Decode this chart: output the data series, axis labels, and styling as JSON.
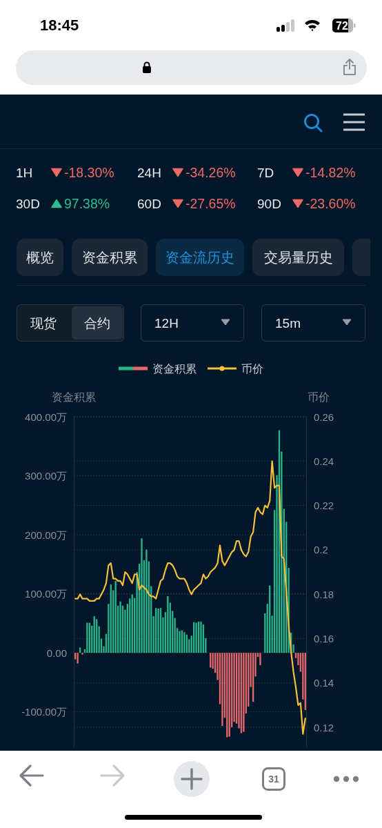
{
  "chart_data": [
    {
      "type": "other",
      "annotations": [
        "18:45",
        "72",
        "1H",
        "-18.30%",
        "24H",
        "-34.26%",
        "7D",
        "-14.82%",
        "30D",
        "97.38%",
        "60D",
        "-27.65%",
        "90D",
        "-23.60%",
        "概览",
        "资金积累",
        "资金流历史",
        "交易量历史",
        "现货",
        "合约",
        "12H",
        "15m",
        "31"
      ]
    },
    {
      "type": "bar",
      "ylabel": "资金积累",
      "y2label": "币价",
      "legend": "top",
      "grid": true,
      "categories": [
        null,
        null,
        null,
        null,
        null,
        null,
        null,
        null,
        null,
        null,
        null,
        null,
        null,
        null,
        null,
        null,
        null,
        null,
        null,
        null,
        null,
        null,
        null,
        null,
        null,
        null,
        null,
        null,
        null,
        null,
        null,
        null,
        null,
        null,
        null,
        null,
        null,
        null,
        null,
        null,
        null,
        null,
        null,
        null,
        null,
        null,
        null,
        null,
        null,
        null,
        null,
        null,
        null,
        null,
        null,
        null,
        null,
        null,
        null,
        null,
        null,
        null,
        null,
        null,
        null,
        null,
        null,
        null,
        null,
        null,
        null,
        null,
        null,
        null,
        null,
        null,
        null,
        null,
        null,
        null,
        null,
        null,
        null,
        null,
        null,
        null,
        null,
        null,
        null,
        null,
        null,
        null,
        null,
        null,
        null,
        null,
        null,
        null
      ],
      "series": [
        {
          "name": "资金积累",
          "type": "bar",
          "values": [
            -11,
            -18,
            9,
            -3,
            6,
            51,
            51,
            46,
            62,
            57,
            45,
            24,
            11,
            32,
            83,
            116,
            106,
            122,
            80,
            87,
            80,
            73,
            83,
            92,
            99,
            93,
            137,
            151,
            194,
            157,
            175,
            155,
            113,
            62,
            76,
            75,
            76,
            60,
            69,
            96,
            85,
            71,
            59,
            42,
            37,
            38,
            35,
            31,
            23,
            29,
            52,
            51,
            53,
            53,
            48,
            25,
            null,
            -25,
            -27,
            -34,
            -46,
            -87,
            -124,
            -110,
            -143,
            -142,
            -126,
            -117,
            -120,
            -128,
            -136,
            -134,
            -103,
            -91,
            -58,
            -83,
            -40,
            -7,
            -21,
            null,
            67,
            83,
            114,
            63,
            242,
            301,
            377,
            341,
            244,
            222,
            144,
            34,
            14,
            -9,
            -21,
            -32,
            -79,
            -97
          ],
          "colors": [
            "#e5676b",
            "#e5676b",
            "#27b589",
            "#e5676b",
            "#27b589",
            "#27b589",
            "#27b589",
            "#27b589",
            "#27b589",
            "#27b589",
            "#27b589",
            "#27b589",
            "#27b589",
            "#27b589",
            "#27b589",
            "#27b589",
            "#27b589",
            "#27b589",
            "#27b589",
            "#27b589",
            "#27b589",
            "#27b589",
            "#27b589",
            "#27b589",
            "#27b589",
            "#27b589",
            "#27b589",
            "#27b589",
            "#27b589",
            "#27b589",
            "#27b589",
            "#27b589",
            "#27b589",
            "#27b589",
            "#27b589",
            "#27b589",
            "#27b589",
            "#27b589",
            "#27b589",
            "#27b589",
            "#27b589",
            "#27b589",
            "#27b589",
            "#27b589",
            "#27b589",
            "#27b589",
            "#27b589",
            "#27b589",
            "#27b589",
            "#27b589",
            "#27b589",
            "#27b589",
            "#27b589",
            "#27b589",
            "#27b589",
            "#27b589",
            null,
            "#e5676b",
            "#e5676b",
            "#e5676b",
            "#e5676b",
            "#e5676b",
            "#e5676b",
            "#e5676b",
            "#e5676b",
            "#e5676b",
            "#e5676b",
            "#e5676b",
            "#e5676b",
            "#e5676b",
            "#e5676b",
            "#e5676b",
            "#e5676b",
            "#e5676b",
            "#e5676b",
            "#e5676b",
            "#e5676b",
            "#e5676b",
            "#e5676b",
            null,
            "#27b589",
            "#27b589",
            "#27b589",
            "#27b589",
            "#27b589",
            "#27b589",
            "#27b589",
            "#27b589",
            "#27b589",
            "#27b589",
            "#27b589",
            "#27b589",
            "#27b589",
            "#e5676b",
            "#e5676b",
            "#e5676b",
            "#e5676b",
            "#e5676b"
          ]
        },
        {
          "name": "币价",
          "type": "line",
          "axis": "y2",
          "color": "#f7c03c",
          "values": [
            0.178,
            0.178,
            0.18,
            0.178,
            0.178,
            0.178,
            0.177,
            0.177,
            0.177,
            0.178,
            0.178,
            0.18,
            0.182,
            0.185,
            0.193,
            0.194,
            0.187,
            0.187,
            0.186,
            0.186,
            0.184,
            0.19,
            0.189,
            0.187,
            0.185,
            0.189,
            0.189,
            0.182,
            0.184,
            0.183,
            0.182,
            0.18,
            0.179,
            0.179,
            0.178,
            0.182,
            0.186,
            0.187,
            0.191,
            0.194,
            0.194,
            0.193,
            0.191,
            0.188,
            0.187,
            0.187,
            0.187,
            0.185,
            0.182,
            0.18,
            0.182,
            0.183,
            0.184,
            0.185,
            0.189,
            0.187,
            0.188,
            0.19,
            0.191,
            0.192,
            0.194,
            0.202,
            0.195,
            0.193,
            0.195,
            0.197,
            0.199,
            0.2,
            0.204,
            0.204,
            0.2,
            0.198,
            0.197,
            0.199,
            0.206,
            0.208,
            0.217,
            0.219,
            0.217,
            0.216,
            0.22,
            0.219,
            0.222,
            0.24,
            0.228,
            0.229,
            0.229,
            0.197,
            0.196,
            0.181,
            0.166,
            0.154,
            0.145,
            0.138,
            0.13,
            0.131,
            0.117,
            0.124
          ]
        }
      ],
      "ylim": [
        -160,
        400
      ],
      "yticks": [
        {
          "value": -100,
          "label": "-100.00万"
        },
        {
          "value": 0,
          "label": "0.00"
        },
        {
          "value": 100,
          "label": "100.00万"
        },
        {
          "value": 200,
          "label": "200.00万"
        },
        {
          "value": 300,
          "label": "300.00万"
        },
        {
          "value": 400,
          "label": "400.00万"
        }
      ],
      "y2lim": [
        0.111,
        0.26
      ],
      "y2ticks": [
        0.12,
        0.14,
        0.16,
        0.18,
        0.2,
        0.22,
        0.24,
        0.26
      ]
    }
  ]
}
